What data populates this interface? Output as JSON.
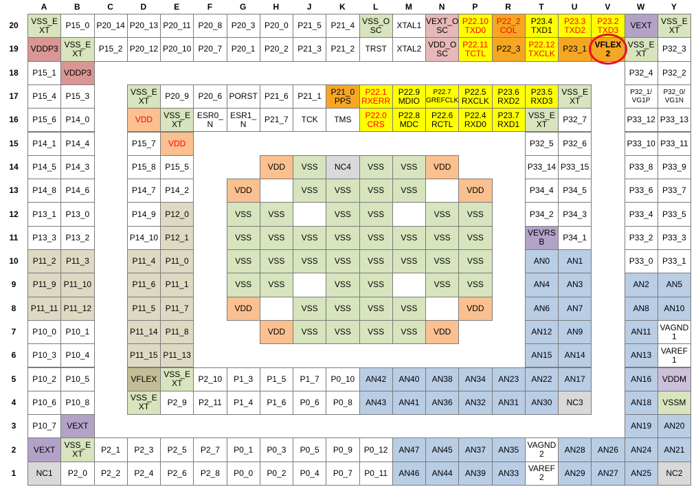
{
  "columns": [
    "A",
    "B",
    "C",
    "D",
    "E",
    "F",
    "G",
    "H",
    "J",
    "K",
    "L",
    "M",
    "N",
    "P",
    "R",
    "T",
    "U",
    "V",
    "W",
    "Y"
  ],
  "colors": {
    "w": "#ffffff",
    "g": "#d7e4bd",
    "b": "#d99694",
    "v": "#b3a2c7",
    "p": "#fac090",
    "k": "#e6b9b8",
    "y": "#ffff00",
    "o": "#f5a623",
    "t": "#ddd9c3",
    "a": "#b9cde5",
    "n": "#d9d9d9",
    "f": "#c4bd97",
    "m": "#ccc0da"
  },
  "rows": [
    {
      "label": "20",
      "cells": [
        {
          "t": "VSS_E\nXT",
          "c": "g"
        },
        {
          "t": "P15_0"
        },
        {
          "t": "P20_14"
        },
        {
          "t": "P20_13"
        },
        {
          "t": "P20_11"
        },
        {
          "t": "P20_8"
        },
        {
          "t": "P20_3"
        },
        {
          "t": "P20_0"
        },
        {
          "t": "P21_5"
        },
        {
          "t": "P21_4"
        },
        {
          "t": "VSS_O\nSC",
          "c": "g"
        },
        {
          "t": "XTAL1"
        },
        {
          "t": "VEXT_O\nSC",
          "c": "k"
        },
        {
          "t": "P22.10\nTXD0",
          "c": "y",
          "fg": "#ff0000"
        },
        {
          "t": "P22_2\nCOL",
          "c": "o",
          "fg": "#ff0000"
        },
        {
          "t": "P23.4\nTXD1",
          "c": "y"
        },
        {
          "t": "P23.3\nTXD2",
          "c": "y",
          "fg": "#ff0000"
        },
        {
          "t": "P23.2\nTXD3",
          "c": "y",
          "fg": "#ff0000"
        },
        {
          "t": "VEXT",
          "c": "v"
        },
        {
          "t": "VSS_E\nXT",
          "c": "g"
        }
      ]
    },
    {
      "label": "19",
      "cells": [
        {
          "t": "VDDP3",
          "c": "b"
        },
        {
          "t": "VSS_E\nXT",
          "c": "g"
        },
        {
          "t": "P15_2"
        },
        {
          "t": "P20_12"
        },
        {
          "t": "P20_10"
        },
        {
          "t": "P20_7"
        },
        {
          "t": "P20_1"
        },
        {
          "t": "P20_2"
        },
        {
          "t": "P21_3"
        },
        {
          "t": "P21_2"
        },
        {
          "t": "TRST"
        },
        {
          "t": "XTAL2"
        },
        {
          "t": "VDD_O\nSC",
          "c": "k"
        },
        {
          "t": "P22.11\nTCTL",
          "c": "y",
          "fg": "#ff0000"
        },
        {
          "t": "P22_3",
          "c": "o"
        },
        {
          "t": "P22.12\nTXCLK",
          "c": "y",
          "fg": "#ff0000"
        },
        {
          "t": "P23_1",
          "c": "o"
        },
        {
          "t": "VFLEX\n2",
          "c": "o"
        },
        {
          "t": "VSS_E\nXT",
          "c": "g"
        },
        {
          "t": "P32_3"
        }
      ]
    },
    {
      "label": "18",
      "cells": [
        {
          "t": "P15_1"
        },
        {
          "t": "VDDP3",
          "c": "b"
        },
        null,
        null,
        null,
        null,
        null,
        null,
        null,
        null,
        null,
        null,
        null,
        null,
        null,
        null,
        null,
        null,
        {
          "t": "P32_4"
        },
        {
          "t": "P32_2"
        }
      ]
    },
    {
      "label": "17",
      "cells": [
        {
          "t": "P15_4"
        },
        {
          "t": "P15_3"
        },
        null,
        {
          "t": "VSS_E\nXT",
          "c": "g"
        },
        {
          "t": "P20_9"
        },
        {
          "t": "P20_6"
        },
        {
          "t": "PORST"
        },
        {
          "t": "P21_6"
        },
        {
          "t": "P21_1"
        },
        {
          "t": "P21_0\nPPS",
          "c": "o"
        },
        {
          "t": "P22.1\nRXERR",
          "c": "y",
          "fg": "#ff0000"
        },
        {
          "t": "P22.9\nMDIO",
          "c": "y"
        },
        {
          "t": "P22.7\nGREFCLK",
          "c": "y"
        },
        {
          "t": "P22.5\nRXCLK",
          "c": "y"
        },
        {
          "t": "P23.6\nRXD2",
          "c": "y"
        },
        {
          "t": "P23.5\nRXD3",
          "c": "y"
        },
        {
          "t": "VSS_E\nXT",
          "c": "g"
        },
        null,
        {
          "t": "P32_1/\nVG1P"
        },
        {
          "t": "P32_0/\nVG1N"
        }
      ]
    },
    {
      "label": "16",
      "cells": [
        {
          "t": "P15_6"
        },
        {
          "t": "P14_0"
        },
        null,
        {
          "t": "VDD",
          "c": "p",
          "fg": "#ff0000"
        },
        {
          "t": "VSS_E\nXT",
          "c": "g"
        },
        {
          "t": "ESR0_\nN"
        },
        {
          "t": "ESR1_\nN"
        },
        {
          "t": "P21_7"
        },
        {
          "t": "TCK"
        },
        {
          "t": "TMS"
        },
        {
          "t": "P22.0\nCRS",
          "c": "y",
          "fg": "#ff0000"
        },
        {
          "t": "P22.8\nMDC",
          "c": "y"
        },
        {
          "t": "P22.6\nRCTL",
          "c": "y"
        },
        {
          "t": "P22.4\nRXD0",
          "c": "y"
        },
        {
          "t": "P23.7\nRXD1",
          "c": "y"
        },
        {
          "t": "VSS_E\nXT",
          "c": "g"
        },
        {
          "t": "P32_7"
        },
        null,
        {
          "t": "P33_12"
        },
        {
          "t": "P33_13"
        }
      ]
    },
    {
      "label": "15",
      "cells": [
        {
          "t": "P14_1"
        },
        {
          "t": "P14_4"
        },
        null,
        {
          "t": "P15_7"
        },
        {
          "t": "VDD",
          "c": "p",
          "fg": "#ff0000"
        },
        null,
        null,
        null,
        null,
        null,
        null,
        null,
        null,
        null,
        null,
        {
          "t": "P32_5"
        },
        {
          "t": "P32_6"
        },
        null,
        {
          "t": "P33_10"
        },
        {
          "t": "P33_11"
        }
      ]
    },
    {
      "label": "14",
      "cells": [
        {
          "t": "P14_5"
        },
        {
          "t": "P14_3"
        },
        null,
        {
          "t": "P15_8"
        },
        {
          "t": "P15_5"
        },
        null,
        null,
        {
          "t": "VDD",
          "c": "p"
        },
        {
          "t": "VSS",
          "c": "g"
        },
        {
          "t": "NC4",
          "c": "n"
        },
        {
          "t": "VSS",
          "c": "g"
        },
        {
          "t": "VSS",
          "c": "g"
        },
        {
          "t": "VDD",
          "c": "p"
        },
        null,
        null,
        {
          "t": "P33_14"
        },
        {
          "t": "P33_15"
        },
        null,
        {
          "t": "P33_8"
        },
        {
          "t": "P33_9"
        }
      ]
    },
    {
      "label": "13",
      "cells": [
        {
          "t": "P14_8"
        },
        {
          "t": "P14_6"
        },
        null,
        {
          "t": "P14_7"
        },
        {
          "t": "P14_2"
        },
        null,
        {
          "t": "VDD",
          "c": "p"
        },
        {
          "c": "w"
        },
        {
          "t": "VSS",
          "c": "g"
        },
        {
          "t": "VSS",
          "c": "g"
        },
        {
          "t": "VSS",
          "c": "g"
        },
        {
          "t": "VSS",
          "c": "g"
        },
        {
          "c": "w"
        },
        {
          "t": "VDD",
          "c": "p"
        },
        null,
        {
          "t": "P34_4"
        },
        {
          "t": "P34_5"
        },
        null,
        {
          "t": "P33_6"
        },
        {
          "t": "P33_7"
        }
      ]
    },
    {
      "label": "12",
      "cells": [
        {
          "t": "P13_1"
        },
        {
          "t": "P13_0"
        },
        null,
        {
          "t": "P14_9"
        },
        {
          "t": "P12_0",
          "c": "t"
        },
        null,
        {
          "t": "VSS",
          "c": "g"
        },
        {
          "t": "VSS",
          "c": "g"
        },
        {
          "c": "w"
        },
        {
          "t": "VSS",
          "c": "g"
        },
        {
          "t": "VSS",
          "c": "g"
        },
        {
          "c": "w"
        },
        {
          "t": "VSS",
          "c": "g"
        },
        {
          "t": "VSS",
          "c": "g"
        },
        null,
        {
          "t": "P34_2"
        },
        {
          "t": "P34_3"
        },
        null,
        {
          "t": "P33_4"
        },
        {
          "t": "P33_5"
        }
      ]
    },
    {
      "label": "11",
      "cells": [
        {
          "t": "P13_3"
        },
        {
          "t": "P13_2"
        },
        null,
        {
          "t": "P14_10"
        },
        {
          "t": "P12_1",
          "c": "t"
        },
        null,
        {
          "t": "VSS",
          "c": "g"
        },
        {
          "t": "VSS",
          "c": "g"
        },
        {
          "t": "VSS",
          "c": "g"
        },
        {
          "t": "VSS",
          "c": "g"
        },
        {
          "t": "VSS",
          "c": "g"
        },
        {
          "t": "VSS",
          "c": "g"
        },
        {
          "t": "VSS",
          "c": "g"
        },
        {
          "t": "VSS",
          "c": "g"
        },
        null,
        {
          "t": "VEVRS\nB",
          "c": "v"
        },
        {
          "t": "P34_1"
        },
        null,
        {
          "t": "P33_2"
        },
        {
          "t": "P33_3"
        }
      ]
    },
    {
      "label": "10",
      "cells": [
        {
          "t": "P11_2",
          "c": "t"
        },
        {
          "t": "P11_3",
          "c": "t"
        },
        null,
        {
          "t": "P11_4",
          "c": "t"
        },
        {
          "t": "P11_0",
          "c": "t"
        },
        null,
        {
          "t": "VSS",
          "c": "g"
        },
        {
          "t": "VSS",
          "c": "g"
        },
        {
          "t": "VSS",
          "c": "g"
        },
        {
          "t": "VSS",
          "c": "g"
        },
        {
          "t": "VSS",
          "c": "g"
        },
        {
          "t": "VSS",
          "c": "g"
        },
        {
          "t": "VSS",
          "c": "g"
        },
        {
          "t": "VSS",
          "c": "g"
        },
        null,
        {
          "t": "AN0",
          "c": "a"
        },
        {
          "t": "AN1",
          "c": "a"
        },
        null,
        {
          "t": "P33_0"
        },
        {
          "t": "P33_1"
        }
      ]
    },
    {
      "label": "9",
      "cells": [
        {
          "t": "P11_9",
          "c": "t"
        },
        {
          "t": "P11_10",
          "c": "t"
        },
        null,
        {
          "t": "P11_6",
          "c": "t"
        },
        {
          "t": "P11_1",
          "c": "t"
        },
        null,
        {
          "t": "VSS",
          "c": "g"
        },
        {
          "t": "VSS",
          "c": "g"
        },
        {
          "c": "w"
        },
        {
          "t": "VSS",
          "c": "g"
        },
        {
          "t": "VSS",
          "c": "g"
        },
        {
          "c": "w"
        },
        {
          "t": "VSS",
          "c": "g"
        },
        {
          "t": "VSS",
          "c": "g"
        },
        null,
        {
          "t": "AN4",
          "c": "a"
        },
        {
          "t": "AN3",
          "c": "a"
        },
        null,
        {
          "t": "AN2",
          "c": "a"
        },
        {
          "t": "AN5",
          "c": "a"
        }
      ]
    },
    {
      "label": "8",
      "cells": [
        {
          "t": "P11_11",
          "c": "t"
        },
        {
          "t": "P11_12",
          "c": "t"
        },
        null,
        {
          "t": "P11_5",
          "c": "t"
        },
        {
          "t": "P11_7",
          "c": "t"
        },
        null,
        {
          "t": "VDD",
          "c": "p"
        },
        {
          "c": "w"
        },
        {
          "t": "VSS",
          "c": "g"
        },
        {
          "t": "VSS",
          "c": "g"
        },
        {
          "t": "VSS",
          "c": "g"
        },
        {
          "t": "VSS",
          "c": "g"
        },
        {
          "c": "w"
        },
        {
          "t": "VDD",
          "c": "p"
        },
        null,
        {
          "t": "AN6",
          "c": "a"
        },
        {
          "t": "AN7",
          "c": "a"
        },
        null,
        {
          "t": "AN8",
          "c": "a"
        },
        {
          "t": "AN10",
          "c": "a"
        }
      ]
    },
    {
      "label": "7",
      "cells": [
        {
          "t": "P10_0"
        },
        {
          "t": "P10_1"
        },
        null,
        {
          "t": "P11_14",
          "c": "t"
        },
        {
          "t": "P11_8",
          "c": "t"
        },
        null,
        null,
        {
          "t": "VDD",
          "c": "p"
        },
        {
          "t": "VSS",
          "c": "g"
        },
        {
          "t": "VSS",
          "c": "g"
        },
        {
          "t": "VSS",
          "c": "g"
        },
        {
          "t": "VSS",
          "c": "g"
        },
        {
          "t": "VDD",
          "c": "p"
        },
        null,
        null,
        {
          "t": "AN12",
          "c": "a"
        },
        {
          "t": "AN9",
          "c": "a"
        },
        null,
        {
          "t": "AN11",
          "c": "a"
        },
        {
          "t": "VAGND\n1"
        }
      ]
    },
    {
      "label": "6",
      "cells": [
        {
          "t": "P10_3"
        },
        {
          "t": "P10_4"
        },
        null,
        {
          "t": "P11_15",
          "c": "t"
        },
        {
          "t": "P11_13",
          "c": "t"
        },
        null,
        null,
        null,
        null,
        null,
        null,
        null,
        null,
        null,
        null,
        {
          "t": "AN15",
          "c": "a"
        },
        {
          "t": "AN14",
          "c": "a"
        },
        null,
        {
          "t": "AN13",
          "c": "a"
        },
        {
          "t": "VAREF\n1"
        }
      ]
    },
    {
      "label": "5",
      "cells": [
        {
          "t": "P10_2"
        },
        {
          "t": "P10_5"
        },
        null,
        {
          "t": "VFLEX",
          "c": "f"
        },
        {
          "t": "VSS_E\nXT",
          "c": "g"
        },
        {
          "t": "P2_10"
        },
        {
          "t": "P1_3"
        },
        {
          "t": "P1_5"
        },
        {
          "t": "P1_7"
        },
        {
          "t": "P0_10"
        },
        {
          "t": "AN42",
          "c": "a"
        },
        {
          "t": "AN40",
          "c": "a"
        },
        {
          "t": "AN38",
          "c": "a"
        },
        {
          "t": "AN34",
          "c": "a"
        },
        {
          "t": "AN23",
          "c": "a"
        },
        {
          "t": "AN22",
          "c": "a"
        },
        {
          "t": "AN17",
          "c": "a"
        },
        null,
        {
          "t": "AN16",
          "c": "a"
        },
        {
          "t": "VDDM",
          "c": "m"
        }
      ]
    },
    {
      "label": "4",
      "cells": [
        {
          "t": "P10_6"
        },
        {
          "t": "P10_8"
        },
        null,
        {
          "t": "VSS_E\nXT",
          "c": "g"
        },
        {
          "t": "P2_9"
        },
        {
          "t": "P2_11"
        },
        {
          "t": "P1_4"
        },
        {
          "t": "P1_6"
        },
        {
          "t": "P0_6"
        },
        {
          "t": "P0_8"
        },
        {
          "t": "AN43",
          "c": "a"
        },
        {
          "t": "AN41",
          "c": "a"
        },
        {
          "t": "AN36",
          "c": "a"
        },
        {
          "t": "AN32",
          "c": "a"
        },
        {
          "t": "AN31",
          "c": "a"
        },
        {
          "t": "AN30",
          "c": "a"
        },
        {
          "t": "NC3",
          "c": "n"
        },
        null,
        {
          "t": "AN18",
          "c": "a"
        },
        {
          "t": "VSSM",
          "c": "g"
        }
      ]
    },
    {
      "label": "3",
      "cells": [
        {
          "t": "P10_7"
        },
        {
          "t": "VEXT",
          "c": "v"
        },
        null,
        null,
        null,
        null,
        null,
        null,
        null,
        null,
        null,
        null,
        null,
        null,
        null,
        null,
        null,
        null,
        {
          "t": "AN19",
          "c": "a"
        },
        {
          "t": "AN20",
          "c": "a"
        }
      ]
    },
    {
      "label": "2",
      "cells": [
        {
          "t": "VEXT",
          "c": "v"
        },
        {
          "t": "VSS_E\nXT",
          "c": "g"
        },
        {
          "t": "P2_1"
        },
        {
          "t": "P2_3"
        },
        {
          "t": "P2_5"
        },
        {
          "t": "P2_7"
        },
        {
          "t": "P0_1"
        },
        {
          "t": "P0_3"
        },
        {
          "t": "P0_5"
        },
        {
          "t": "P0_9"
        },
        {
          "t": "P0_12"
        },
        {
          "t": "AN47",
          "c": "a"
        },
        {
          "t": "AN45",
          "c": "a"
        },
        {
          "t": "AN37",
          "c": "a"
        },
        {
          "t": "AN35",
          "c": "a"
        },
        {
          "t": "VAGND\n2"
        },
        {
          "t": "AN28",
          "c": "a"
        },
        {
          "t": "AN26",
          "c": "a"
        },
        {
          "t": "AN24",
          "c": "a"
        },
        {
          "t": "AN21",
          "c": "a"
        }
      ]
    },
    {
      "label": "1",
      "cells": [
        {
          "t": "NC1",
          "c": "n"
        },
        {
          "t": "P2_0"
        },
        {
          "t": "P2_2"
        },
        {
          "t": "P2_4"
        },
        {
          "t": "P2_6"
        },
        {
          "t": "P2_8"
        },
        {
          "t": "P0_0"
        },
        {
          "t": "P0_2"
        },
        {
          "t": "P0_4"
        },
        {
          "t": "P0_7"
        },
        {
          "t": "P0_11"
        },
        {
          "t": "AN46",
          "c": "a"
        },
        {
          "t": "AN44",
          "c": "a"
        },
        {
          "t": "AN39",
          "c": "a"
        },
        {
          "t": "AN33",
          "c": "a"
        },
        {
          "t": "VAREF\n2"
        },
        {
          "t": "AN29",
          "c": "a"
        },
        {
          "t": "AN27",
          "c": "a"
        },
        {
          "t": "AN25",
          "c": "a"
        },
        {
          "t": "NC2",
          "c": "n"
        }
      ]
    }
  ]
}
